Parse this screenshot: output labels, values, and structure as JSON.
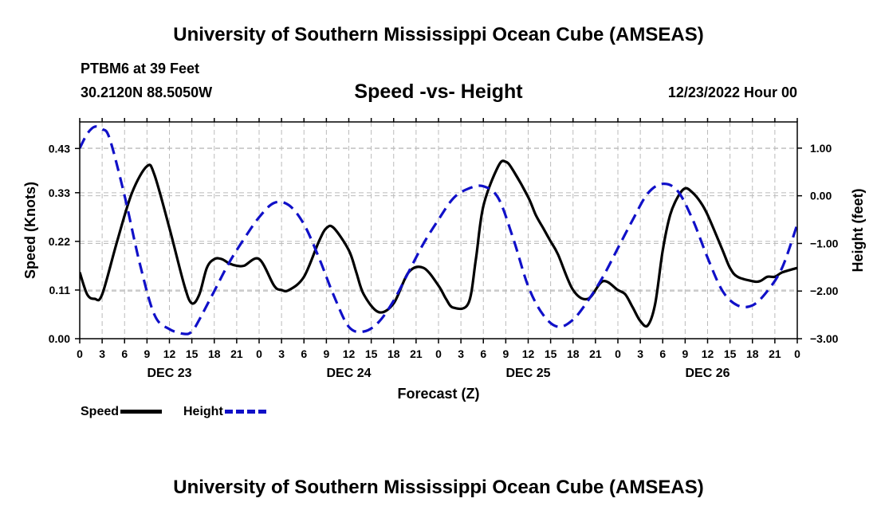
{
  "page": {
    "title": "University of Southern Mississippi Ocean Cube (AMSEAS)",
    "footer_title": "University of Southern Mississippi Ocean Cube (AMSEAS)",
    "station": "PTBM6 at 39 Feet",
    "coords": "30.2120N  88.5050W",
    "subtitle": "Speed -vs- Height",
    "datetime": "12/23/2022 Hour 00"
  },
  "colors": {
    "speed": "#000000",
    "height": "#1010c8",
    "grid": "#bbbbbb"
  },
  "legend": {
    "speed": "Speed",
    "height": "Height"
  },
  "chart_data": {
    "type": "line",
    "xlabel": "Forecast (Z)",
    "ylabel_left": "Speed (Knots)",
    "ylabel_right": "Height (feet)",
    "x_range": [
      0,
      96
    ],
    "x_ticks": [
      0,
      3,
      6,
      9,
      12,
      15,
      18,
      21,
      24,
      27,
      30,
      33,
      36,
      39,
      42,
      45,
      48,
      51,
      54,
      57,
      60,
      63,
      66,
      69,
      72,
      75,
      78,
      81,
      84,
      87,
      90,
      93,
      96
    ],
    "x_tick_labels": [
      "0",
      "3",
      "6",
      "9",
      "12",
      "15",
      "18",
      "21",
      "0",
      "3",
      "6",
      "9",
      "12",
      "15",
      "18",
      "21",
      "0",
      "3",
      "6",
      "9",
      "12",
      "15",
      "18",
      "21",
      "0",
      "3",
      "6",
      "9",
      "12",
      "15",
      "18",
      "21",
      "0"
    ],
    "day_labels": [
      {
        "hour": 12,
        "label": "DEC 23"
      },
      {
        "hour": 36,
        "label": "DEC 24"
      },
      {
        "hour": 60,
        "label": "DEC 25"
      },
      {
        "hour": 84,
        "label": "DEC 26"
      }
    ],
    "ylim_left": [
      0,
      0.49
    ],
    "y_ticks_left": [
      0.0,
      0.11,
      0.22,
      0.33,
      0.43
    ],
    "y_tick_labels_left": [
      "0.00",
      "0.11",
      "0.22",
      "0.33",
      "0.43"
    ],
    "ylim_right": [
      -3.0,
      1.55
    ],
    "y_ticks_right": [
      -3,
      -2,
      -1,
      0,
      1
    ],
    "y_tick_labels_right": [
      "−3.00",
      "−2.00",
      "−1.00",
      "0.00",
      "1.00"
    ],
    "series": [
      {
        "name": "Speed",
        "axis": "left",
        "style": "solid",
        "x": [
          0,
          1,
          2,
          3,
          5,
          7,
          9,
          10,
          12,
          14,
          15,
          16,
          17,
          18,
          19,
          20,
          21,
          22,
          24,
          26,
          27,
          28,
          30,
          32,
          33,
          34,
          36,
          37,
          38,
          40,
          42,
          44,
          46,
          48,
          49,
          50,
          52,
          53,
          54,
          56,
          57,
          58,
          60,
          61,
          62,
          63,
          64,
          66,
          68,
          70,
          72,
          73,
          74,
          75,
          76,
          77,
          78,
          79,
          80,
          81,
          82,
          83,
          84,
          86,
          87,
          88,
          90,
          91,
          92,
          93,
          94,
          96
        ],
        "values": [
          0.15,
          0.1,
          0.09,
          0.1,
          0.22,
          0.33,
          0.39,
          0.37,
          0.25,
          0.12,
          0.08,
          0.1,
          0.16,
          0.18,
          0.18,
          0.17,
          0.165,
          0.165,
          0.18,
          0.12,
          0.11,
          0.11,
          0.14,
          0.22,
          0.25,
          0.25,
          0.2,
          0.15,
          0.1,
          0.06,
          0.08,
          0.15,
          0.16,
          0.12,
          0.09,
          0.07,
          0.08,
          0.18,
          0.3,
          0.39,
          0.4,
          0.38,
          0.32,
          0.28,
          0.25,
          0.22,
          0.19,
          0.11,
          0.09,
          0.13,
          0.11,
          0.1,
          0.07,
          0.04,
          0.03,
          0.08,
          0.2,
          0.28,
          0.32,
          0.34,
          0.33,
          0.31,
          0.28,
          0.2,
          0.16,
          0.14,
          0.13,
          0.13,
          0.14,
          0.14,
          0.15,
          0.16
        ]
      },
      {
        "name": "Height",
        "axis": "right",
        "style": "dashed",
        "x": [
          0,
          1,
          2,
          3,
          4,
          6,
          8,
          10,
          12,
          14,
          15,
          16,
          18,
          20,
          22,
          24,
          26,
          28,
          30,
          32,
          34,
          36,
          38,
          40,
          42,
          44,
          46,
          48,
          50,
          52,
          54,
          56,
          58,
          60,
          62,
          64,
          66,
          68,
          70,
          72,
          74,
          76,
          78,
          80,
          82,
          84,
          86,
          88,
          90,
          92,
          94,
          96
        ],
        "values": [
          1.0,
          1.3,
          1.45,
          1.4,
          1.2,
          0.0,
          -1.4,
          -2.5,
          -2.8,
          -2.9,
          -2.85,
          -2.6,
          -2.0,
          -1.4,
          -0.9,
          -0.45,
          -0.15,
          -0.2,
          -0.6,
          -1.3,
          -2.1,
          -2.75,
          -2.85,
          -2.65,
          -2.2,
          -1.6,
          -1.0,
          -0.5,
          -0.05,
          0.15,
          0.2,
          -0.05,
          -0.9,
          -1.9,
          -2.5,
          -2.75,
          -2.6,
          -2.2,
          -1.7,
          -1.1,
          -0.5,
          0.05,
          0.25,
          0.1,
          -0.5,
          -1.3,
          -2.0,
          -2.3,
          -2.3,
          -2.0,
          -1.5,
          -0.6
        ]
      }
    ]
  }
}
